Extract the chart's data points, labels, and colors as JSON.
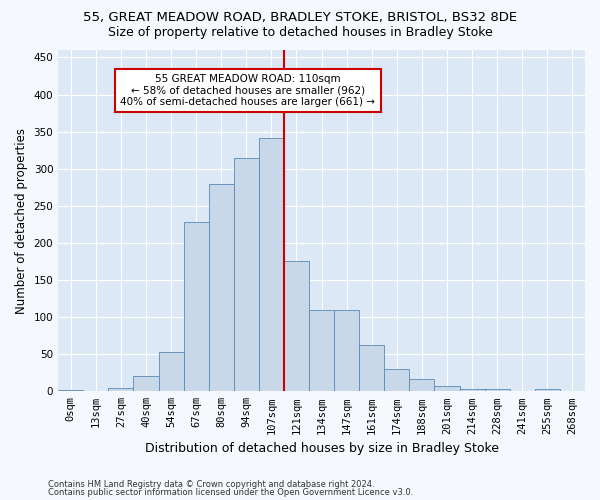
{
  "title": "55, GREAT MEADOW ROAD, BRADLEY STOKE, BRISTOL, BS32 8DE",
  "subtitle": "Size of property relative to detached houses in Bradley Stoke",
  "xlabel": "Distribution of detached houses by size in Bradley Stoke",
  "ylabel": "Number of detached properties",
  "footer_line1": "Contains HM Land Registry data © Crown copyright and database right 2024.",
  "footer_line2": "Contains public sector information licensed under the Open Government Licence v3.0.",
  "bar_labels": [
    "0sqm",
    "13sqm",
    "27sqm",
    "40sqm",
    "54sqm",
    "67sqm",
    "80sqm",
    "94sqm",
    "107sqm",
    "121sqm",
    "134sqm",
    "147sqm",
    "161sqm",
    "174sqm",
    "188sqm",
    "201sqm",
    "214sqm",
    "228sqm",
    "241sqm",
    "255sqm",
    "268sqm"
  ],
  "bar_values": [
    2,
    0,
    5,
    20,
    53,
    228,
    280,
    315,
    342,
    175,
    109,
    109,
    62,
    30,
    16,
    7,
    3,
    3,
    0,
    3,
    0
  ],
  "bar_color": "#c8d8e8",
  "bar_edge_color": "#5a8ab5",
  "bar_width": 1.0,
  "property_line_x": 8.5,
  "property_label": "55 GREAT MEADOW ROAD: 110sqm",
  "annotation_line2": "← 58% of detached houses are smaller (962)",
  "annotation_line3": "40% of semi-detached houses are larger (661) →",
  "annotation_box_color": "#ffffff",
  "annotation_box_edge_color": "#cc0000",
  "line_color": "#cc0000",
  "ylim": [
    0,
    460
  ],
  "yticks": [
    0,
    50,
    100,
    150,
    200,
    250,
    300,
    350,
    400,
    450
  ],
  "background_color": "#dce8f5",
  "grid_color": "#ffffff",
  "title_fontsize": 9.5,
  "subtitle_fontsize": 9,
  "axis_label_fontsize": 8.5,
  "tick_fontsize": 7.5,
  "footer_fontsize": 6.0
}
